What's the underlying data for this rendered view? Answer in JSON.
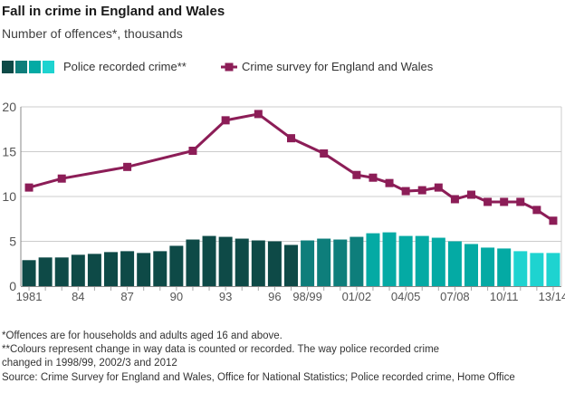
{
  "header": {
    "title": "Fall in crime in England and Wales",
    "subtitle": "Number of offences*, thousands"
  },
  "legend": {
    "bars_label": "Police recorded crime**",
    "line_label": "Crime survey for England and Wales"
  },
  "colors": {
    "bar_groups": [
      "#0e4a47",
      "#0e7e7b",
      "#04aaa4",
      "#1ed3d0"
    ],
    "line": "#8c1d57",
    "grid": "#cccccc",
    "axis": "#888888",
    "tick": "#aaaaaa",
    "axis_text": "#555555"
  },
  "chart_data": {
    "type": "bar",
    "title": "Fall in crime in England and Wales",
    "ylabel": "Number of offences*, thousands",
    "xlabel": "",
    "ylim": [
      0,
      20
    ],
    "yticks": [
      0,
      5,
      10,
      15,
      20
    ],
    "grid": true,
    "legend_position": "top",
    "categories": [
      "1981",
      "1982",
      "1983",
      "1984",
      "1985",
      "1986",
      "1987",
      "1988",
      "1989",
      "1990",
      "1991",
      "1992",
      "1993",
      "1994",
      "1995",
      "1996",
      "1997",
      "98/99",
      "99/00",
      "00/01",
      "01/02",
      "02/03",
      "03/04",
      "04/05",
      "05/06",
      "06/07",
      "07/08",
      "08/09",
      "09/10",
      "10/11",
      "11/12",
      "12/13",
      "13/14"
    ],
    "x_tick_labels": [
      {
        "label": "1981",
        "index": 0
      },
      {
        "label": "84",
        "index": 3
      },
      {
        "label": "87",
        "index": 6
      },
      {
        "label": "90",
        "index": 9
      },
      {
        "label": "93",
        "index": 12
      },
      {
        "label": "96",
        "index": 15
      },
      {
        "label": "98/99",
        "index": 17
      },
      {
        "label": "01/02",
        "index": 20
      },
      {
        "label": "04/05",
        "index": 23
      },
      {
        "label": "07/08",
        "index": 26
      },
      {
        "label": "10/11",
        "index": 29
      },
      {
        "label": "13/14",
        "index": 32
      }
    ],
    "series": [
      {
        "name": "Police recorded crime**",
        "type": "bar",
        "values": [
          2.9,
          3.2,
          3.2,
          3.5,
          3.6,
          3.8,
          3.9,
          3.7,
          3.9,
          4.5,
          5.2,
          5.6,
          5.5,
          5.3,
          5.1,
          5.0,
          4.6,
          5.1,
          5.3,
          5.2,
          5.5,
          5.9,
          6.0,
          5.6,
          5.6,
          5.4,
          5.0,
          4.7,
          4.3,
          4.2,
          3.9,
          3.7,
          3.7
        ],
        "color_group_breaks": [
          {
            "start_category": "1981",
            "group": 0
          },
          {
            "start_category": "98/99",
            "group": 1
          },
          {
            "start_category": "02/03",
            "group": 2
          },
          {
            "start_category": "11/12",
            "group": 3
          }
        ]
      },
      {
        "name": "Crime survey for England and Wales",
        "type": "line",
        "points": [
          [
            "1981",
            11.0
          ],
          [
            "1983",
            12.0
          ],
          [
            "1987",
            13.3
          ],
          [
            "1991",
            15.1
          ],
          [
            "1993",
            18.5
          ],
          [
            "1995",
            19.2
          ],
          [
            "1997",
            16.5
          ],
          [
            "99/00",
            14.8
          ],
          [
            "01/02",
            12.4
          ],
          [
            "02/03",
            12.1
          ],
          [
            "03/04",
            11.5
          ],
          [
            "04/05",
            10.6
          ],
          [
            "05/06",
            10.7
          ],
          [
            "06/07",
            11.0
          ],
          [
            "07/08",
            9.7
          ],
          [
            "08/09",
            10.2
          ],
          [
            "09/10",
            9.4
          ],
          [
            "10/11",
            9.4
          ],
          [
            "11/12",
            9.4
          ],
          [
            "12/13",
            8.5
          ],
          [
            "13/14",
            7.3
          ]
        ]
      }
    ]
  },
  "footnotes": {
    "note1": "*Offences are for households and adults aged 16 and above.",
    "note2": "**Colours represent change in way data is counted or recorded. The way police recorded crime changed in 1998/99, 2002/3 and 2012"
  },
  "source": "Source: Crime Survey for England and Wales, Office for National Statistics; Police recorded crime, Home Office"
}
